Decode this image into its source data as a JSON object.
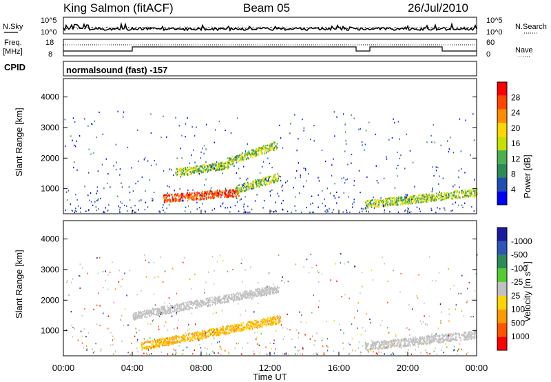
{
  "header": {
    "station": "King Salmon (fitACF)",
    "beam": "Beam 05",
    "date": "26/Jul/2010"
  },
  "panels": {
    "nsky_label": "N.Sky",
    "nsearch_label": "N.Search",
    "freq_label": "Freq.",
    "freq_unit": "[MHz]",
    "nave_label": "Nave",
    "cpid_label": "CPID",
    "cpid_value": "normalsound (fast) -157",
    "noise_ticks": [
      "10^5",
      "10^0"
    ],
    "freq_ticks": [
      "18",
      "8"
    ],
    "nave_ticks": [
      "60",
      "0"
    ]
  },
  "colors": {
    "power": [
      "#0000ff",
      "#1f4fb0",
      "#2e8b57",
      "#4caf50",
      "#c8e000",
      "#ffd700",
      "#ff8c00",
      "#ff4500",
      "#ff0000"
    ],
    "velocity": [
      "#1a1aa0",
      "#2e55b8",
      "#2e8b57",
      "#55cc33",
      "#c0c0c0",
      "#ffd400",
      "#ff9900",
      "#ff5500",
      "#ff0000"
    ]
  },
  "chart_data": [
    {
      "type": "heatmap",
      "quantity": "Power",
      "xlabel": "",
      "ylabel": "Slant Range [km]",
      "x_ticks": [
        "00:00",
        "04:00",
        "08:00",
        "12:00",
        "16:00",
        "20:00",
        "00:00"
      ],
      "x_range_hours": [
        0,
        24
      ],
      "ylim": [
        180,
        4600
      ],
      "y_ticks": [
        1000,
        2000,
        3000,
        4000
      ],
      "colorbar_label": "Power [dB]",
      "colorbar_ticks": [
        "4",
        "8",
        "12",
        "16",
        "20",
        "24",
        "28"
      ],
      "features": [
        {
          "t_start": 5.8,
          "t_end": 10.2,
          "range_start": 700,
          "range_end": 900,
          "level": "high"
        },
        {
          "t_start": 6.5,
          "t_end": 9.6,
          "range_start": 1550,
          "range_end": 1800,
          "level": "medium"
        },
        {
          "t_start": 9.5,
          "t_end": 12.4,
          "range_start": 1900,
          "range_end": 2450,
          "level": "medium"
        },
        {
          "t_start": 10.0,
          "t_end": 12.5,
          "range_start": 1000,
          "range_end": 1400,
          "level": "medium"
        },
        {
          "t_start": 17.5,
          "t_end": 24.0,
          "range_start": 500,
          "range_end": 900,
          "level": "medium"
        }
      ]
    },
    {
      "type": "heatmap",
      "quantity": "Velocity",
      "xlabel": "Time UT",
      "ylabel": "Slant Range [km]",
      "x_ticks": [
        "00:00",
        "04:00",
        "08:00",
        "12:00",
        "16:00",
        "20:00",
        "00:00"
      ],
      "x_range_hours": [
        0,
        24
      ],
      "ylim": [
        180,
        4600
      ],
      "y_ticks": [
        1000,
        2000,
        3000,
        4000
      ],
      "colorbar_label": "Velocity [m s⁻¹]",
      "colorbar_ticks": [
        "1000",
        "500",
        "100",
        "25",
        "-25",
        "-100",
        "-500",
        "-1000"
      ],
      "features": [
        {
          "t_start": 4.5,
          "t_end": 12.6,
          "range_start": 500,
          "range_end": 1400,
          "level": "negative"
        },
        {
          "t_start": 4.0,
          "t_end": 12.5,
          "range_start": 1500,
          "range_end": 2400,
          "level": "ground"
        },
        {
          "t_start": 17.5,
          "t_end": 24.0,
          "range_start": 500,
          "range_end": 900,
          "level": "ground"
        }
      ]
    }
  ]
}
